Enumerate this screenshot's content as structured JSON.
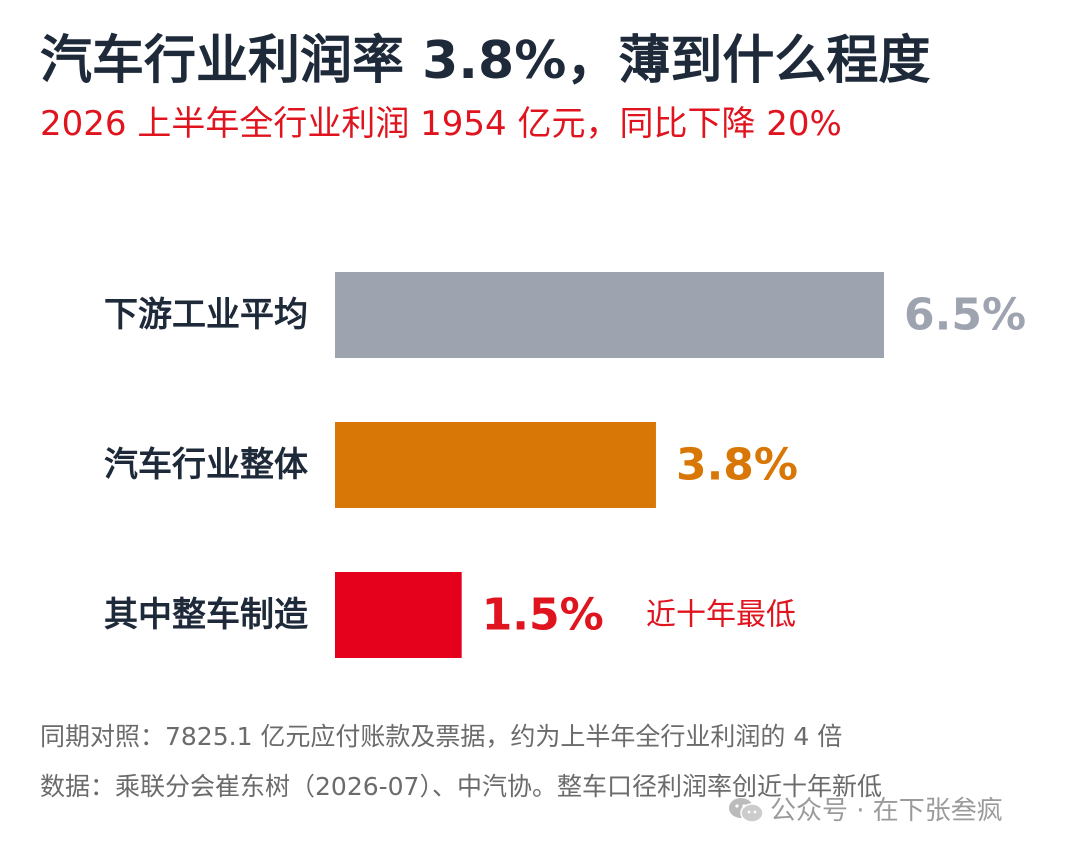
{
  "header": {
    "title": "汽车行业利润率 3.8%，薄到什么程度",
    "subtitle": "2026 上半年全行业利润 1954 亿元，同比下降 20%"
  },
  "chart_data": {
    "type": "bar",
    "orientation": "horizontal",
    "categories": [
      "下游工业平均",
      "汽车行业整体",
      "其中整车制造"
    ],
    "values": [
      6.5,
      3.8,
      1.5
    ],
    "value_labels": [
      "6.5%",
      "3.8%",
      "1.5%"
    ],
    "colors": [
      "#9ea3b0",
      "#d97706",
      "#e5001b"
    ],
    "annotation": {
      "category": "其中整车制造",
      "text": "近十年最低",
      "color": "#e0141e"
    },
    "xlim": [
      0,
      6.5
    ],
    "grid": false,
    "legend": "none"
  },
  "footer": {
    "note1": "同期对照：7825.1 亿元应付账款及票据，约为上半年全行业利润的 4 倍",
    "note2": "数据：乘联分会崔东树（2026-07）、中汽协。整车口径利润率创近十年新低"
  },
  "watermark": {
    "text": "公众号 · 在下张叁疯",
    "icon": "wechat-icon"
  }
}
